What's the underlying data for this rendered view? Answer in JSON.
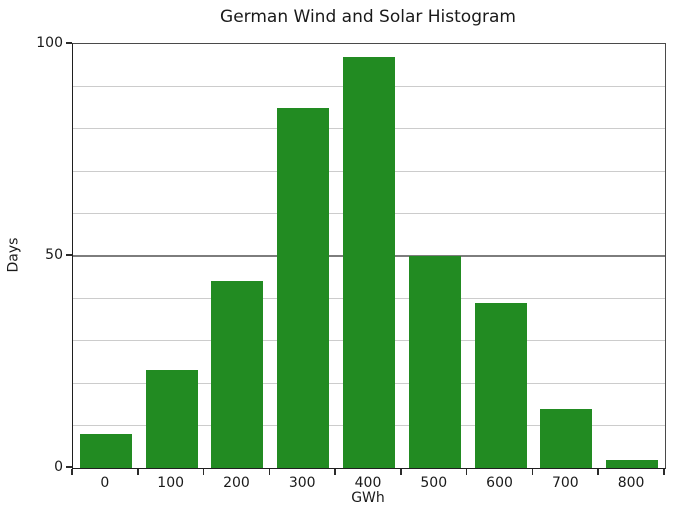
{
  "chart_data": {
    "type": "bar",
    "variant": "histogram",
    "title": "German Wind and Solar Histogram",
    "xlabel": "GWh",
    "ylabel": "Days",
    "categories": [
      "0",
      "100",
      "200",
      "300",
      "400",
      "500",
      "600",
      "700",
      "800"
    ],
    "values": [
      8,
      23,
      44,
      85,
      97,
      50,
      39,
      14,
      2
    ],
    "ylim": [
      0,
      100
    ],
    "yticks": [
      0,
      50,
      100
    ],
    "ytick_labels": [
      "0",
      "50",
      "100"
    ],
    "grid": {
      "minor_step": 10,
      "major_lines": [
        50,
        100
      ],
      "minor_color": "#cccccc",
      "major_color": "#7d7d7d"
    },
    "bar_color": "#228b22",
    "background_color": "#ffffff",
    "text_color": "#1a1a1a",
    "legend": "none"
  }
}
